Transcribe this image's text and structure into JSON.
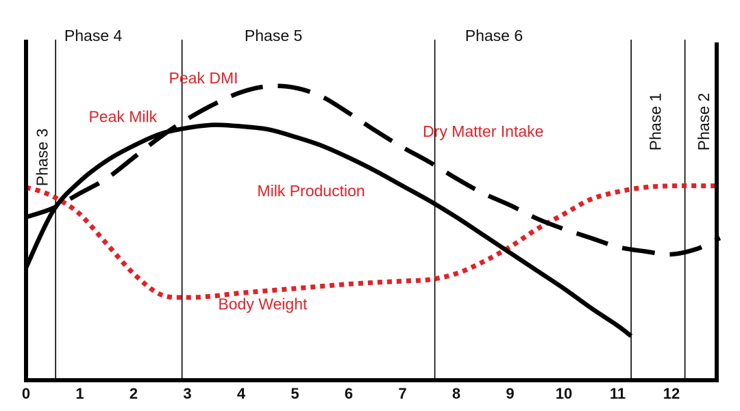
{
  "chart_data": {
    "type": "line",
    "title": "",
    "xlabel": "",
    "ylabel": "",
    "xlim": [
      0,
      12.9
    ],
    "ylim": [
      0,
      100
    ],
    "x_ticks": [
      "0",
      "1",
      "2",
      "3",
      "4",
      "5",
      "6",
      "7",
      "8",
      "9",
      "10",
      "11",
      "12"
    ],
    "phase_boundaries": [
      0.55,
      2.9,
      7.6,
      11.25,
      12.25
    ],
    "phases": [
      {
        "label": "Phase 3",
        "x": 0.3,
        "orientation": "vertical"
      },
      {
        "label": "Phase 4",
        "x": 1.25,
        "orientation": "horizontal"
      },
      {
        "label": "Phase 5",
        "x": 4.6,
        "orientation": "horizontal"
      },
      {
        "label": "Phase 6",
        "x": 8.7,
        "orientation": "horizontal"
      },
      {
        "label": "Phase 1",
        "x": 11.7,
        "orientation": "vertical"
      },
      {
        "label": "Phase 2",
        "x": 12.6,
        "orientation": "vertical"
      }
    ],
    "series": [
      {
        "name": "Milk Production",
        "style": "solid",
        "color": "#000000",
        "points": [
          [
            0,
            33
          ],
          [
            0.5,
            52
          ],
          [
            1,
            62
          ],
          [
            1.5,
            69
          ],
          [
            2,
            74
          ],
          [
            2.5,
            78
          ],
          [
            3,
            80
          ],
          [
            3.5,
            81
          ],
          [
            4,
            80.5
          ],
          [
            4.5,
            79.5
          ],
          [
            5,
            77
          ],
          [
            5.5,
            74
          ],
          [
            6,
            70
          ],
          [
            6.5,
            65.5
          ],
          [
            7,
            60.5
          ],
          [
            7.5,
            55.5
          ],
          [
            8,
            50
          ],
          [
            8.5,
            44
          ],
          [
            9,
            38
          ],
          [
            9.5,
            32
          ],
          [
            10,
            26
          ],
          [
            10.5,
            19.5
          ],
          [
            11,
            13.5
          ],
          [
            11.25,
            10
          ]
        ]
      },
      {
        "name": "Dry Matter Intake",
        "style": "dashed",
        "color": "#000000",
        "points": [
          [
            0,
            50
          ],
          [
            0.5,
            53
          ],
          [
            1,
            58
          ],
          [
            1.5,
            63
          ],
          [
            2,
            70
          ],
          [
            2.5,
            77
          ],
          [
            3,
            83
          ],
          [
            3.5,
            88
          ],
          [
            4,
            92
          ],
          [
            4.5,
            94
          ],
          [
            5,
            93.5
          ],
          [
            5.5,
            90.5
          ],
          [
            6,
            85
          ],
          [
            6.5,
            79
          ],
          [
            7,
            73.5
          ],
          [
            7.5,
            68.5
          ],
          [
            8,
            63
          ],
          [
            8.5,
            58
          ],
          [
            9,
            54
          ],
          [
            9.5,
            49.5
          ],
          [
            10,
            46
          ],
          [
            10.5,
            43
          ],
          [
            11,
            40
          ],
          [
            11.5,
            38.5
          ],
          [
            12,
            37.5
          ],
          [
            12.5,
            39.5
          ],
          [
            12.9,
            43
          ]
        ]
      },
      {
        "name": "Body Weight",
        "style": "dotted",
        "color": "#e32128",
        "points": [
          [
            0,
            60
          ],
          [
            0.3,
            58.5
          ],
          [
            0.6,
            56
          ],
          [
            1,
            51
          ],
          [
            1.5,
            41
          ],
          [
            2,
            31
          ],
          [
            2.5,
            24
          ],
          [
            3,
            23
          ],
          [
            3.5,
            23.5
          ],
          [
            4,
            24.5
          ],
          [
            5,
            26
          ],
          [
            6,
            27.5
          ],
          [
            7,
            28.5
          ],
          [
            7.5,
            29
          ],
          [
            8,
            31
          ],
          [
            8.5,
            35
          ],
          [
            9,
            40
          ],
          [
            9.5,
            46
          ],
          [
            10,
            51
          ],
          [
            10.5,
            56
          ],
          [
            11,
            58.5
          ],
          [
            11.5,
            60
          ],
          [
            12,
            60.5
          ],
          [
            12.9,
            60.5
          ]
        ]
      }
    ],
    "annotations": [
      {
        "text": "Peak DMI",
        "x": 3.3,
        "y": 95
      },
      {
        "text": "Peak Milk",
        "x": 1.8,
        "y": 82
      },
      {
        "text": "Dry Matter Intake",
        "x": 8.5,
        "y": 77
      },
      {
        "text": "Milk Production",
        "x": 5.3,
        "y": 57
      },
      {
        "text": "Body Weight",
        "x": 4.4,
        "y": 19
      }
    ]
  }
}
